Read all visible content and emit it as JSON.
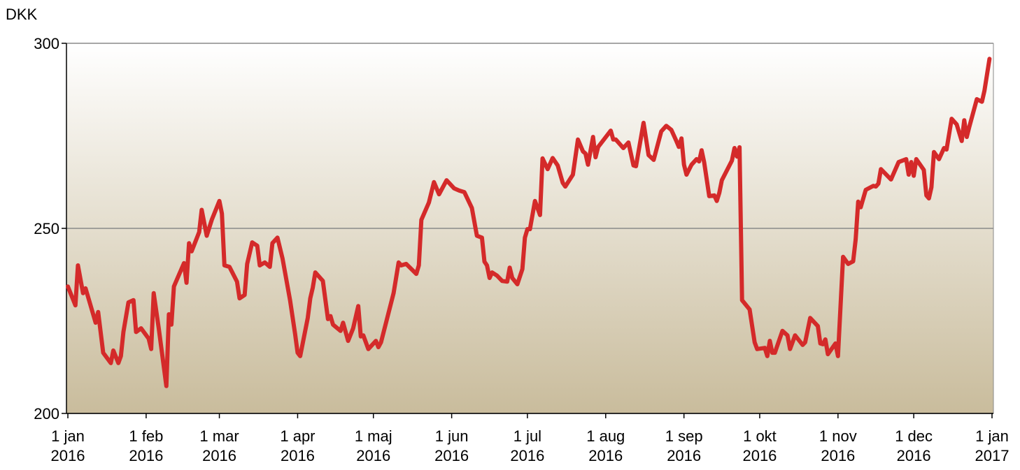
{
  "chart_data": {
    "type": "line",
    "y_label": "DKK",
    "x": [
      "2016-01-01",
      "2016-01-04",
      "2016-01-05",
      "2016-01-07",
      "2016-01-08",
      "2016-01-12",
      "2016-01-13",
      "2016-01-15",
      "2016-01-18",
      "2016-01-19",
      "2016-01-21",
      "2016-01-22",
      "2016-01-23",
      "2016-01-25",
      "2016-01-27",
      "2016-01-28",
      "2016-01-30",
      "2016-02-02",
      "2016-02-03",
      "2016-02-04",
      "2016-02-06",
      "2016-02-09",
      "2016-02-10",
      "2016-02-11",
      "2016-02-12",
      "2016-02-16",
      "2016-02-17",
      "2016-02-18",
      "2016-02-19",
      "2016-02-22",
      "2016-02-23",
      "2016-02-25",
      "2016-02-27",
      "2016-03-01",
      "2016-03-02",
      "2016-03-03",
      "2016-03-05",
      "2016-03-08",
      "2016-03-09",
      "2016-03-11",
      "2016-03-12",
      "2016-03-14",
      "2016-03-16",
      "2016-03-17",
      "2016-03-19",
      "2016-03-21",
      "2016-03-22",
      "2016-03-24",
      "2016-03-26",
      "2016-03-29",
      "2016-03-31",
      "2016-04-01",
      "2016-04-02",
      "2016-04-05",
      "2016-04-06",
      "2016-04-07",
      "2016-04-08",
      "2016-04-11",
      "2016-04-13",
      "2016-04-14",
      "2016-04-15",
      "2016-04-18",
      "2016-04-19",
      "2016-04-21",
      "2016-04-23",
      "2016-04-25",
      "2016-04-26",
      "2016-04-27",
      "2016-04-29",
      "2016-05-02",
      "2016-05-03",
      "2016-05-04",
      "2016-05-09",
      "2016-05-11",
      "2016-05-12",
      "2016-05-14",
      "2016-05-18",
      "2016-05-19",
      "2016-05-20",
      "2016-05-23",
      "2016-05-25",
      "2016-05-27",
      "2016-05-30",
      "2016-06-02",
      "2016-06-04",
      "2016-06-06",
      "2016-06-09",
      "2016-06-11",
      "2016-06-13",
      "2016-06-14",
      "2016-06-15",
      "2016-06-16",
      "2016-06-17",
      "2016-06-19",
      "2016-06-21",
      "2016-06-23",
      "2016-06-24",
      "2016-06-25",
      "2016-06-27",
      "2016-06-29",
      "2016-06-30",
      "2016-07-01",
      "2016-07-02",
      "2016-07-04",
      "2016-07-06",
      "2016-07-07",
      "2016-07-09",
      "2016-07-11",
      "2016-07-13",
      "2016-07-15",
      "2016-07-16",
      "2016-07-19",
      "2016-07-21",
      "2016-07-23",
      "2016-07-24",
      "2016-07-25",
      "2016-07-27",
      "2016-07-28",
      "2016-07-29",
      "2016-08-03",
      "2016-08-04",
      "2016-08-05",
      "2016-08-08",
      "2016-08-10",
      "2016-08-12",
      "2016-08-13",
      "2016-08-16",
      "2016-08-18",
      "2016-08-20",
      "2016-08-23",
      "2016-08-25",
      "2016-08-27",
      "2016-08-29",
      "2016-08-30",
      "2016-08-31",
      "2016-09-01",
      "2016-09-02",
      "2016-09-04",
      "2016-09-06",
      "2016-09-07",
      "2016-09-08",
      "2016-09-09",
      "2016-09-11",
      "2016-09-13",
      "2016-09-14",
      "2016-09-15",
      "2016-09-16",
      "2016-09-20",
      "2016-09-21",
      "2016-09-22",
      "2016-09-23",
      "2016-09-24",
      "2016-09-27",
      "2016-09-29",
      "2016-09-30",
      "2016-10-03",
      "2016-10-04",
      "2016-10-05",
      "2016-10-06",
      "2016-10-07",
      "2016-10-10",
      "2016-10-12",
      "2016-10-13",
      "2016-10-15",
      "2016-10-18",
      "2016-10-19",
      "2016-10-21",
      "2016-10-24",
      "2016-10-25",
      "2016-10-26",
      "2016-10-27",
      "2016-10-28",
      "2016-10-31",
      "2016-11-01",
      "2016-11-03",
      "2016-11-05",
      "2016-11-07",
      "2016-11-08",
      "2016-11-09",
      "2016-11-10",
      "2016-11-12",
      "2016-11-15",
      "2016-11-16",
      "2016-11-17",
      "2016-11-18",
      "2016-11-22",
      "2016-11-25",
      "2016-11-28",
      "2016-11-29",
      "2016-11-30",
      "2016-12-01",
      "2016-12-02",
      "2016-12-05",
      "2016-12-06",
      "2016-12-07",
      "2016-12-08",
      "2016-12-09",
      "2016-12-11",
      "2016-12-13",
      "2016-12-14",
      "2016-12-16",
      "2016-12-18",
      "2016-12-20",
      "2016-12-21",
      "2016-12-22",
      "2016-12-23",
      "2016-12-26",
      "2016-12-28",
      "2016-12-29",
      "2016-12-31"
    ],
    "series": [
      {
        "color": "#d42a2a",
        "values": [
          234.3,
          229.2,
          240,
          232.5,
          233.8,
          224.5,
          227.4,
          216.4,
          213.6,
          217,
          213.6,
          215.5,
          222,
          230,
          230.6,
          222,
          223,
          220.2,
          217.4,
          232.5,
          223,
          207.4,
          226.8,
          224,
          234.3,
          240.6,
          235.3,
          246,
          243.8,
          249,
          255,
          248,
          252.3,
          257.4,
          254,
          240,
          239.6,
          235.6,
          231.1,
          232,
          240.4,
          246.2,
          245.3,
          240,
          240.8,
          239.6,
          246,
          247.5,
          241.9,
          230.6,
          221.5,
          216.4,
          215.5,
          225.8,
          231.1,
          234,
          238.1,
          235.8,
          225.5,
          226.3,
          224,
          222.3,
          224.5,
          219.6,
          223,
          229,
          220.8,
          221.1,
          217.4,
          219.6,
          217.9,
          219.2,
          232.5,
          240.8,
          240,
          240.4,
          237.7,
          240,
          252.3,
          257,
          262.5,
          259.2,
          263,
          260.8,
          260.2,
          259.8,
          255.5,
          248,
          247.5,
          241,
          240,
          236.6,
          238.1,
          237.2,
          235.8,
          235.6,
          239.4,
          236.6,
          234.9,
          239,
          247.5,
          249.8,
          249.8,
          257.4,
          253.6,
          268.9,
          266,
          269,
          267,
          262.3,
          261.3,
          264.5,
          274,
          270.8,
          270.2,
          267.2,
          274.7,
          269.2,
          272,
          276.4,
          274,
          274,
          271.7,
          273.2,
          267,
          266.8,
          278.5,
          269.8,
          268.5,
          276.2,
          277.7,
          276.6,
          273.6,
          272,
          274.3,
          267.2,
          264.5,
          267.2,
          268.7,
          268.1,
          271.1,
          267.9,
          258.7,
          258.9,
          257.4,
          259.6,
          263,
          268.3,
          271.7,
          269.4,
          271.9,
          230.6,
          228.1,
          219.2,
          217.4,
          217.7,
          215.5,
          219.6,
          216.4,
          216.4,
          222.3,
          221.1,
          217.4,
          221.1,
          218.5,
          219.2,
          225.8,
          223.6,
          218.9,
          218.7,
          220,
          216,
          218.9,
          215.5,
          242.3,
          240.4,
          241.1,
          247,
          257.2,
          255.7,
          260.4,
          261.5,
          261.3,
          262.1,
          266,
          263.2,
          267.9,
          268.7,
          264.5,
          267.9,
          264.2,
          268.7,
          265.8,
          258.9,
          258.1,
          261.1,
          270.6,
          268.7,
          271.7,
          271.3,
          279.6,
          278.1,
          273.6,
          279.2,
          274.7,
          277.4,
          284.9,
          284.2,
          287.2,
          295.8
        ]
      }
    ],
    "xlim": [
      "2016-01-01",
      "2017-01-01"
    ],
    "xticks": [
      {
        "value": "2016-01-01",
        "label": [
          "1 jan",
          "2016"
        ]
      },
      {
        "value": "2016-02-01",
        "label": [
          "1 feb",
          "2016"
        ]
      },
      {
        "value": "2016-03-01",
        "label": [
          "1 mar",
          "2016"
        ]
      },
      {
        "value": "2016-04-01",
        "label": [
          "1 apr",
          "2016"
        ]
      },
      {
        "value": "2016-05-01",
        "label": [
          "1 maj",
          "2016"
        ]
      },
      {
        "value": "2016-06-01",
        "label": [
          "1 jun",
          "2016"
        ]
      },
      {
        "value": "2016-07-01",
        "label": [
          "1 jul",
          "2016"
        ]
      },
      {
        "value": "2016-08-01",
        "label": [
          "1 aug",
          "2016"
        ]
      },
      {
        "value": "2016-09-01",
        "label": [
          "1 sep",
          "2016"
        ]
      },
      {
        "value": "2016-10-01",
        "label": [
          "1 okt",
          "2016"
        ]
      },
      {
        "value": "2016-11-01",
        "label": [
          "1 nov",
          "2016"
        ]
      },
      {
        "value": "2016-12-01",
        "label": [
          "1 dec",
          "2016"
        ]
      },
      {
        "value": "2017-01-01",
        "label": [
          "1 jan",
          "2017"
        ]
      }
    ],
    "ylim": [
      200,
      300
    ],
    "yticks": [
      200,
      250,
      300
    ],
    "grid": true
  }
}
